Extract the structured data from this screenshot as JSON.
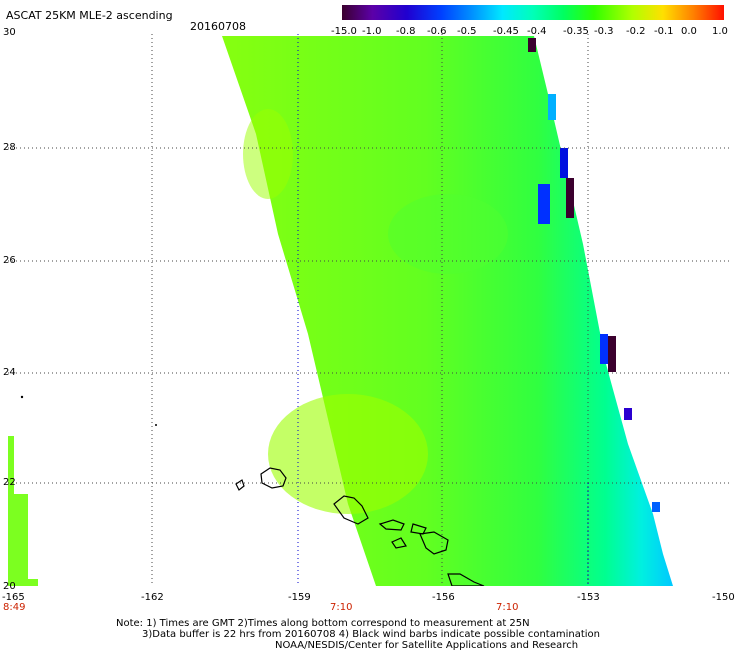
{
  "header": {
    "title": "ASCAT 25KM MLE-2 ascending",
    "date": "20160708"
  },
  "colorbar": {
    "labels": [
      "-15.0",
      "-1.0",
      "-0.8",
      "-0.6",
      "-0.5",
      "-0.45",
      "-0.4",
      "-0.35",
      "-0.3",
      "-0.2",
      "-0.1",
      "0.0",
      "1.0"
    ],
    "colors": [
      "#3b002e",
      "#5c00a8",
      "#3000cc",
      "#0030ff",
      "#0090ff",
      "#00e0ff",
      "#00ffb0",
      "#00ff50",
      "#30ff00",
      "#a0ff00",
      "#ffe000",
      "#ff8000",
      "#ff1000"
    ]
  },
  "axes": {
    "lat_labels": [
      "30",
      "28",
      "26",
      "24",
      "22",
      "20"
    ],
    "lon_labels": [
      "-165",
      "-162",
      "-159",
      "-156",
      "-153",
      "-150"
    ],
    "time_labels": [
      "8:49",
      "7:10",
      "7:10"
    ]
  },
  "notes": {
    "line1": "Note: 1) Times are GMT 2)Times along bottom correspond to measurement at 25N",
    "line2": "3)Data buffer is 22 hrs from 20160708 4) Black wind barbs indicate possible contamination",
    "line3": "NOAA/NESDIS/Center for Satellite Applications and Research"
  }
}
